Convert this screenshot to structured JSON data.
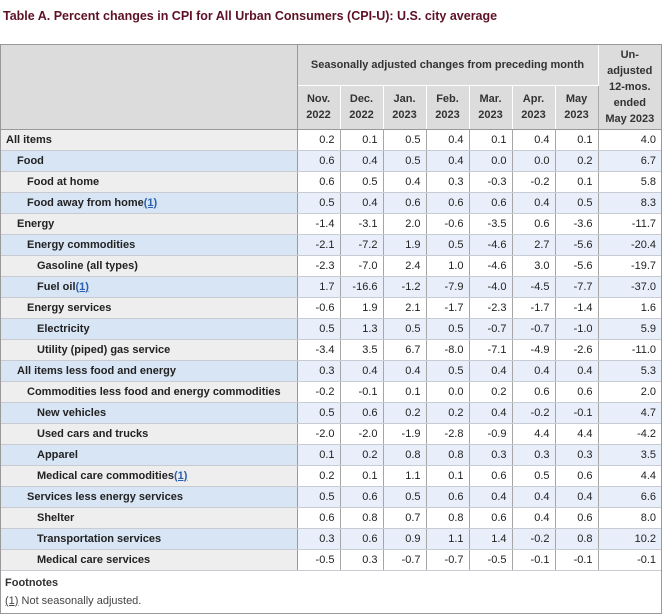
{
  "title": "Table A. Percent changes in CPI for All Urban Consumers (CPI-U): U.S. city average",
  "table": {
    "col_group_header": "Seasonally adjusted changes from preceding month",
    "unadjusted_header_lines": [
      "Un-",
      "adjusted",
      "12-mos.",
      "ended",
      "May 2023"
    ],
    "month_headers": [
      {
        "line1": "Nov.",
        "line2": "2022"
      },
      {
        "line1": "Dec.",
        "line2": "2022"
      },
      {
        "line1": "Jan.",
        "line2": "2023"
      },
      {
        "line1": "Feb.",
        "line2": "2023"
      },
      {
        "line1": "Mar.",
        "line2": "2023"
      },
      {
        "line1": "Apr.",
        "line2": "2023"
      },
      {
        "line1": "May",
        "line2": "2023"
      }
    ],
    "rows": [
      {
        "label": "All items",
        "indent": 0,
        "footnote": null,
        "values": [
          "0.2",
          "0.1",
          "0.5",
          "0.4",
          "0.1",
          "0.4",
          "0.1",
          "4.0"
        ]
      },
      {
        "label": "Food",
        "indent": 1,
        "footnote": null,
        "values": [
          "0.6",
          "0.4",
          "0.5",
          "0.4",
          "0.0",
          "0.0",
          "0.2",
          "6.7"
        ]
      },
      {
        "label": "Food at home",
        "indent": 2,
        "footnote": null,
        "values": [
          "0.6",
          "0.5",
          "0.4",
          "0.3",
          "-0.3",
          "-0.2",
          "0.1",
          "5.8"
        ]
      },
      {
        "label": "Food away from home",
        "indent": 2,
        "footnote": "(1)",
        "values": [
          "0.5",
          "0.4",
          "0.6",
          "0.6",
          "0.6",
          "0.4",
          "0.5",
          "8.3"
        ]
      },
      {
        "label": "Energy",
        "indent": 1,
        "footnote": null,
        "values": [
          "-1.4",
          "-3.1",
          "2.0",
          "-0.6",
          "-3.5",
          "0.6",
          "-3.6",
          "-11.7"
        ]
      },
      {
        "label": "Energy commodities",
        "indent": 2,
        "footnote": null,
        "values": [
          "-2.1",
          "-7.2",
          "1.9",
          "0.5",
          "-4.6",
          "2.7",
          "-5.6",
          "-20.4"
        ]
      },
      {
        "label": "Gasoline (all types)",
        "indent": 3,
        "footnote": null,
        "values": [
          "-2.3",
          "-7.0",
          "2.4",
          "1.0",
          "-4.6",
          "3.0",
          "-5.6",
          "-19.7"
        ]
      },
      {
        "label": "Fuel oil",
        "indent": 3,
        "footnote": "(1)",
        "values": [
          "1.7",
          "-16.6",
          "-1.2",
          "-7.9",
          "-4.0",
          "-4.5",
          "-7.7",
          "-37.0"
        ]
      },
      {
        "label": "Energy services",
        "indent": 2,
        "footnote": null,
        "values": [
          "-0.6",
          "1.9",
          "2.1",
          "-1.7",
          "-2.3",
          "-1.7",
          "-1.4",
          "1.6"
        ]
      },
      {
        "label": "Electricity",
        "indent": 3,
        "footnote": null,
        "values": [
          "0.5",
          "1.3",
          "0.5",
          "0.5",
          "-0.7",
          "-0.7",
          "-1.0",
          "5.9"
        ]
      },
      {
        "label": "Utility (piped) gas service",
        "indent": 3,
        "footnote": null,
        "values": [
          "-3.4",
          "3.5",
          "6.7",
          "-8.0",
          "-7.1",
          "-4.9",
          "-2.6",
          "-11.0"
        ]
      },
      {
        "label": "All items less food and energy",
        "indent": 1,
        "footnote": null,
        "values": [
          "0.3",
          "0.4",
          "0.4",
          "0.5",
          "0.4",
          "0.4",
          "0.4",
          "5.3"
        ]
      },
      {
        "label": "Commodities less food and energy commodities",
        "indent": 2,
        "footnote": null,
        "values": [
          "-0.2",
          "-0.1",
          "0.1",
          "0.0",
          "0.2",
          "0.6",
          "0.6",
          "2.0"
        ]
      },
      {
        "label": "New vehicles",
        "indent": 3,
        "footnote": null,
        "values": [
          "0.5",
          "0.6",
          "0.2",
          "0.2",
          "0.4",
          "-0.2",
          "-0.1",
          "4.7"
        ]
      },
      {
        "label": "Used cars and trucks",
        "indent": 3,
        "footnote": null,
        "values": [
          "-2.0",
          "-2.0",
          "-1.9",
          "-2.8",
          "-0.9",
          "4.4",
          "4.4",
          "-4.2"
        ]
      },
      {
        "label": "Apparel",
        "indent": 3,
        "footnote": null,
        "values": [
          "0.1",
          "0.2",
          "0.8",
          "0.8",
          "0.3",
          "0.3",
          "0.3",
          "3.5"
        ]
      },
      {
        "label": "Medical care commodities",
        "indent": 3,
        "footnote": "(1)",
        "values": [
          "0.2",
          "0.1",
          "1.1",
          "0.1",
          "0.6",
          "0.5",
          "0.6",
          "4.4"
        ]
      },
      {
        "label": "Services less energy services",
        "indent": 2,
        "footnote": null,
        "values": [
          "0.5",
          "0.6",
          "0.5",
          "0.6",
          "0.4",
          "0.4",
          "0.4",
          "6.6"
        ]
      },
      {
        "label": "Shelter",
        "indent": 3,
        "footnote": null,
        "values": [
          "0.6",
          "0.8",
          "0.7",
          "0.8",
          "0.6",
          "0.4",
          "0.6",
          "8.0"
        ]
      },
      {
        "label": "Transportation services",
        "indent": 3,
        "footnote": null,
        "values": [
          "0.3",
          "0.6",
          "0.9",
          "1.1",
          "1.4",
          "-0.2",
          "0.8",
          "10.2"
        ]
      },
      {
        "label": "Medical care services",
        "indent": 3,
        "footnote": null,
        "values": [
          "-0.5",
          "0.3",
          "-0.7",
          "-0.7",
          "-0.5",
          "-0.1",
          "-0.1",
          "-0.1"
        ]
      }
    ]
  },
  "footnotes": {
    "heading": "Footnotes",
    "items": [
      {
        "marker": "(1)",
        "text": "Not seasonally adjusted."
      }
    ]
  },
  "colors": {
    "title_text": "#5e1126",
    "header_bg": "#dcdcdc",
    "row_blue_label_bg": "#d8e5f5",
    "row_blue_data_bg": "#e8effa",
    "row_plain_label_bg": "#eeeeee",
    "row_plain_data_bg": "#ffffff",
    "outer_border": "#999999",
    "footnote_link": "#2b5fb0"
  }
}
